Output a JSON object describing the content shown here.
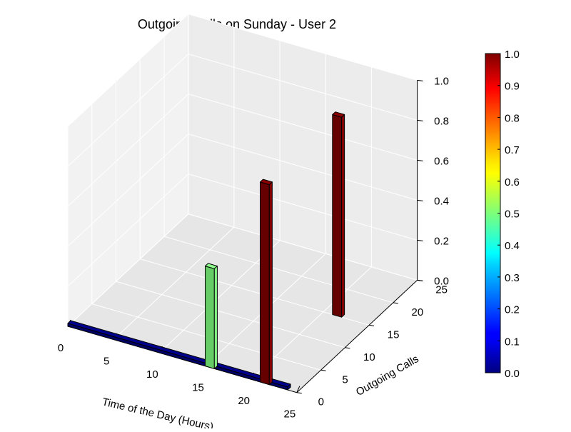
{
  "chart_data": {
    "type": "bar3d",
    "title": "Outgoing Calls on Sunday - User 2",
    "xlabel": "Time of the Day (Hours)",
    "ylabel": "Outgoing Calls",
    "zlabel": "",
    "xlim": [
      0,
      25
    ],
    "ylim": [
      0,
      25
    ],
    "zlim": [
      0,
      1.0
    ],
    "x_ticks": [
      "0",
      "5",
      "10",
      "15",
      "20",
      "25"
    ],
    "y_ticks": [
      "0",
      "5",
      "10",
      "15",
      "20",
      "25"
    ],
    "z_ticks": [
      "0.0",
      "0.2",
      "0.4",
      "0.6",
      "0.8",
      "1.0"
    ],
    "colorbar": {
      "ticks": [
        "0.0",
        "0.1",
        "0.2",
        "0.3",
        "0.4",
        "0.5",
        "0.6",
        "0.7",
        "0.8",
        "0.9",
        "1.0"
      ],
      "colormap": "jet",
      "range": [
        0,
        1
      ]
    },
    "grid": true,
    "series": [
      {
        "hours": [
          0,
          24
        ],
        "outgoing_calls": 0,
        "value": 0.0
      },
      {
        "hours": [
          15,
          16
        ],
        "outgoing_calls": 0,
        "value": 0.5
      },
      {
        "hours": [
          21,
          22
        ],
        "outgoing_calls": 0,
        "value": 1.0
      },
      {
        "hours": [
          21,
          22
        ],
        "outgoing_calls": 15,
        "value": 1.0
      }
    ]
  }
}
